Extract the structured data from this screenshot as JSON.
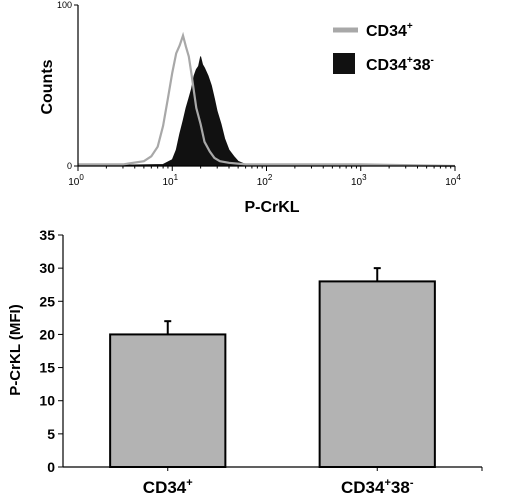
{
  "chart_data": [
    {
      "type": "histogram",
      "xlabel": "P-CrKL",
      "ylabel": "Counts",
      "x_scale": "log",
      "xlim": [
        1,
        10000
      ],
      "ylim": [
        0,
        100
      ],
      "x_ticks": [
        {
          "base": "10",
          "exp": "0"
        },
        {
          "base": "10",
          "exp": "1"
        },
        {
          "base": "10",
          "exp": "2"
        },
        {
          "base": "10",
          "exp": "3"
        },
        {
          "base": "10",
          "exp": "4"
        }
      ],
      "y_ticks": [
        "0",
        "100"
      ],
      "legend_position": "top-right",
      "legend": [
        {
          "text": "CD34",
          "sup": "+",
          "sup2": "",
          "style": "outline",
          "color": "#a8a8a8"
        },
        {
          "text": "CD34",
          "sup": "+",
          "mid": "38",
          "sup2": "-",
          "style": "filled",
          "color": "#111111"
        }
      ],
      "series": [
        {
          "name": "CD34+",
          "style": "outline",
          "color": "#a8a8a8",
          "x": [
            1,
            3,
            5,
            6,
            7,
            8,
            9,
            10,
            11,
            12,
            13,
            14,
            15,
            16,
            17,
            18,
            20,
            22,
            25,
            28,
            32,
            40,
            60,
            100,
            1000,
            10000
          ],
          "y": [
            1,
            1,
            3,
            6,
            12,
            25,
            42,
            58,
            70,
            75,
            81,
            74,
            68,
            57,
            46,
            36,
            26,
            15,
            9,
            5,
            3,
            2,
            1,
            1,
            1,
            0
          ]
        },
        {
          "name": "CD34+38-",
          "style": "filled",
          "color": "#111111",
          "x": [
            1,
            8,
            10,
            11,
            12,
            13,
            14,
            15,
            16,
            17,
            18,
            19,
            20,
            21,
            22,
            24,
            26,
            28,
            30,
            33,
            36,
            40,
            45,
            50,
            60,
            100,
            10000
          ],
          "y": [
            0,
            1,
            4,
            10,
            20,
            28,
            36,
            42,
            48,
            56,
            60,
            62,
            68,
            63,
            61,
            56,
            50,
            42,
            34,
            26,
            17,
            10,
            6,
            3,
            1,
            0,
            0
          ]
        }
      ]
    },
    {
      "type": "bar",
      "ylabel": "P-CrKL (MFI)",
      "ylim": [
        0,
        35
      ],
      "y_ticks": [
        "0",
        "5",
        "10",
        "15",
        "20",
        "25",
        "30",
        "35"
      ],
      "grid": false,
      "bar_color": "#b3b3b3",
      "categories": [
        {
          "text": "CD34",
          "sup": "+",
          "mid": "",
          "sup2": ""
        },
        {
          "text": "CD34",
          "sup": "+",
          "mid": "38",
          "sup2": "-"
        }
      ],
      "values": [
        20,
        28
      ],
      "errors": [
        2,
        2
      ]
    }
  ]
}
